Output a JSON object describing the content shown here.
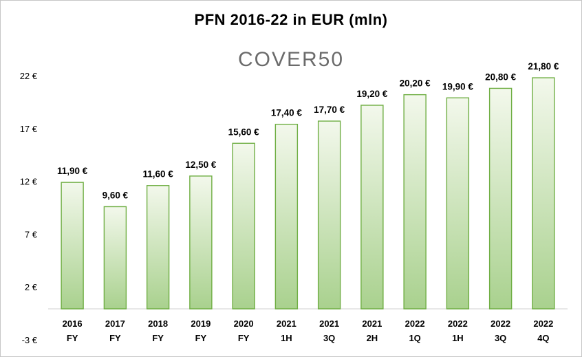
{
  "title": "PFN 2016-22 in EUR (mln)",
  "logo_text": "COVER50",
  "chart_data": {
    "type": "bar",
    "title": "PFN 2016-22 in EUR (mln)",
    "xlabel": "",
    "ylabel": "",
    "ylim": [
      -3,
      22
    ],
    "yticks": [
      -3,
      2,
      7,
      12,
      17,
      22
    ],
    "ytick_labels": [
      "-3 €",
      "2 €",
      "7 €",
      "12 €",
      "17 €",
      "22 €"
    ],
    "categories": [
      [
        "2016",
        "FY"
      ],
      [
        "2017",
        "FY"
      ],
      [
        "2018",
        "FY"
      ],
      [
        "2019",
        "FY"
      ],
      [
        "2020",
        "FY"
      ],
      [
        "2021",
        "1H"
      ],
      [
        "2021",
        "3Q"
      ],
      [
        "2021",
        "2H"
      ],
      [
        "2022",
        "1Q"
      ],
      [
        "2022",
        "1H"
      ],
      [
        "2022",
        "3Q"
      ],
      [
        "2022",
        "4Q"
      ]
    ],
    "values": [
      11.9,
      9.6,
      11.6,
      12.5,
      15.6,
      17.4,
      17.7,
      19.2,
      20.2,
      19.9,
      20.8,
      21.8
    ],
    "value_labels": [
      "11,90 €",
      "9,60 €",
      "11,60 €",
      "12,50 €",
      "15,60 €",
      "17,40 €",
      "17,70 €",
      "19,20 €",
      "20,20 €",
      "19,90 €",
      "20,80 €",
      "21,80 €"
    ],
    "bar_color_top": "#f3f8ec",
    "bar_color_bottom": "#a9d18e",
    "bar_border": "#6fae43",
    "grid": false,
    "legend": "none"
  }
}
